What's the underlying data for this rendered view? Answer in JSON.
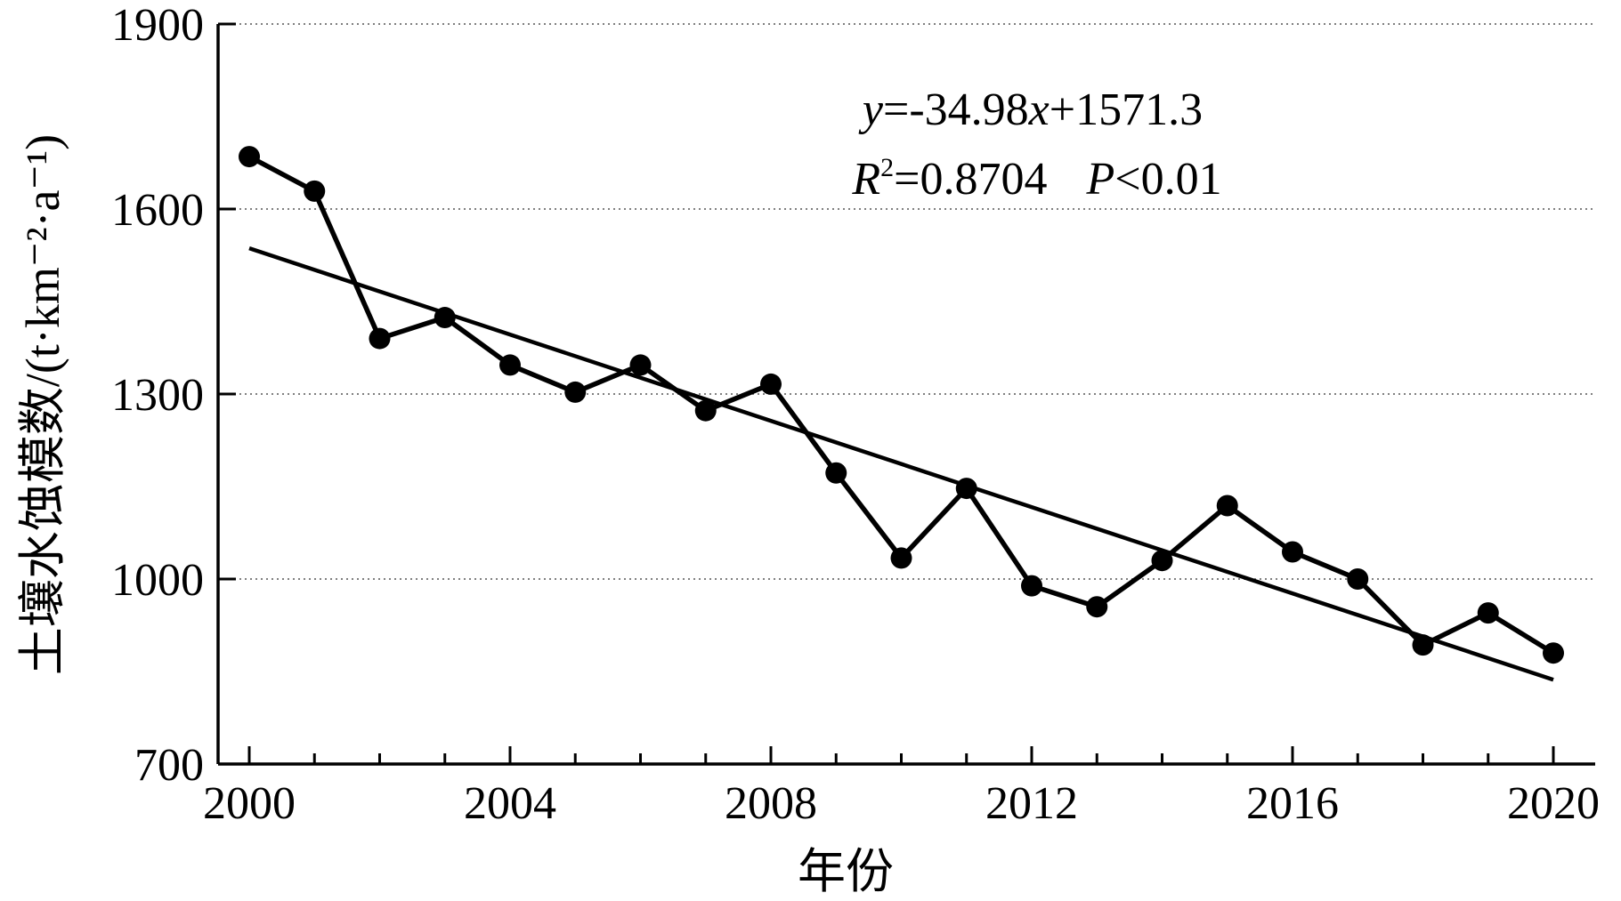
{
  "chart_data": {
    "type": "line",
    "x": [
      2000,
      2001,
      2002,
      2003,
      2004,
      2005,
      2006,
      2007,
      2008,
      2009,
      2010,
      2011,
      2012,
      2013,
      2014,
      2015,
      2016,
      2017,
      2018,
      2019,
      2020
    ],
    "series": [
      {
        "values": [
          1685,
          1629,
          1390,
          1424,
          1347,
          1303,
          1347,
          1273,
          1316,
          1172,
          1034,
          1147,
          989,
          955,
          1030,
          1119,
          1044,
          1000,
          893,
          945,
          880
        ],
        "color": "#000000",
        "marker": "filled-circle"
      }
    ],
    "trendline": {
      "slope": -34.98,
      "intercept": 1571.3,
      "x_origin": 1999,
      "color": "#000000"
    },
    "annotations": {
      "equation": {
        "y": "y",
        "slope": "=-34.98",
        "x": "x",
        "intercept": "+1571.3"
      },
      "fit": {
        "r": "R",
        "r_exp": "2",
        "r2": "=0.8704",
        "p": "P",
        "p_value": "<0.01"
      }
    },
    "xlabel": "年份",
    "ylabel": "土壤水蚀模数/(t·km⁻²·a⁻¹)",
    "xlim": [
      2000,
      2020
    ],
    "ylim": [
      700,
      1900
    ],
    "x_ticks": [
      "2000",
      "2004",
      "2008",
      "2012",
      "2016",
      "2020"
    ],
    "y_ticks": [
      "700",
      "1000",
      "1300",
      "1600",
      "1900"
    ],
    "grid": "horizontal-dotted",
    "legend": "none"
  }
}
